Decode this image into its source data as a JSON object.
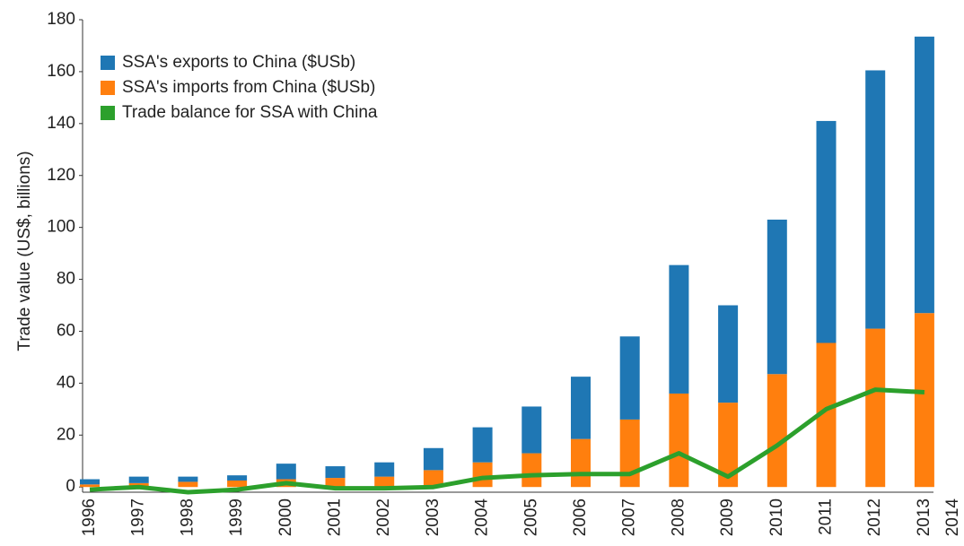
{
  "chart_data": {
    "type": "bar",
    "y_label": "Trade value (US$, billions)",
    "categories": [
      "1996",
      "1997",
      "1998",
      "1999",
      "2000",
      "2001",
      "2002",
      "2003",
      "2004",
      "2005",
      "2006",
      "2007",
      "2008",
      "2009",
      "2010",
      "2011",
      "2012",
      "2013",
      "2014"
    ],
    "series": [
      {
        "name": "SSA's exports to China ($USb)",
        "color": "#1f77b4",
        "type": "bar",
        "values": [
          2,
          2.5,
          2,
          2,
          6,
          4.5,
          5.5,
          8.5,
          13.5,
          18,
          24,
          32,
          49.5,
          37.5,
          59.5,
          85.5,
          99.5,
          106.5,
          null
        ]
      },
      {
        "name": "SSA's imports from China ($USb)",
        "color": "#ff7f0e",
        "type": "bar",
        "values": [
          1,
          1.5,
          2,
          2.5,
          3,
          3.5,
          4,
          6.5,
          9.5,
          13,
          18.5,
          26,
          36,
          32.5,
          43.5,
          55.5,
          61,
          67,
          null
        ]
      },
      {
        "name": "Trade balance for SSA with China",
        "color": "#2ca02c",
        "type": "line",
        "values": [
          -1,
          0,
          -2,
          -1,
          1.5,
          -0.5,
          -0.5,
          0,
          3.5,
          4.5,
          5,
          5,
          13,
          4,
          16,
          30,
          37.5,
          36.5,
          null
        ]
      }
    ],
    "stacked": true,
    "ylim": [
      -2,
      180
    ],
    "yticks": [
      0,
      20,
      40,
      60,
      80,
      100,
      120,
      140,
      160,
      180
    ],
    "grid": false,
    "legend": "upper left"
  }
}
